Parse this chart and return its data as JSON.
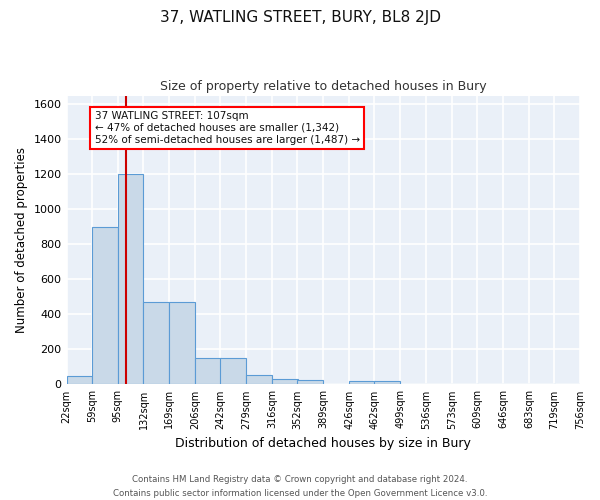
{
  "title": "37, WATLING STREET, BURY, BL8 2JD",
  "subtitle": "Size of property relative to detached houses in Bury",
  "xlabel": "Distribution of detached houses by size in Bury",
  "ylabel": "Number of detached properties",
  "bin_edges": [
    22,
    59,
    95,
    132,
    169,
    206,
    242,
    279,
    316,
    352,
    389,
    426,
    462,
    499,
    536,
    573,
    609,
    646,
    683,
    719,
    756
  ],
  "bar_heights": [
    50,
    900,
    1200,
    470,
    470,
    150,
    150,
    55,
    30,
    25,
    0,
    20,
    20,
    0,
    0,
    0,
    0,
    0,
    0,
    0
  ],
  "bar_color": "#c9d9e8",
  "bar_edge_color": "#5b9bd5",
  "bar_edge_width": 0.8,
  "red_line_x": 107,
  "red_line_color": "#cc0000",
  "ylim": [
    0,
    1650
  ],
  "yticks": [
    0,
    200,
    400,
    600,
    800,
    1000,
    1200,
    1400,
    1600
  ],
  "annotation_text": "37 WATLING STREET: 107sqm\n← 47% of detached houses are smaller (1,342)\n52% of semi-detached houses are larger (1,487) →",
  "background_color": "#eaf0f8",
  "grid_color": "#ffffff",
  "footer_text": "Contains HM Land Registry data © Crown copyright and database right 2024.\nContains public sector information licensed under the Open Government Licence v3.0.",
  "tick_labels": [
    "22sqm",
    "59sqm",
    "95sqm",
    "132sqm",
    "169sqm",
    "206sqm",
    "242sqm",
    "279sqm",
    "316sqm",
    "352sqm",
    "389sqm",
    "426sqm",
    "462sqm",
    "499sqm",
    "536sqm",
    "573sqm",
    "609sqm",
    "646sqm",
    "683sqm",
    "719sqm",
    "756sqm"
  ]
}
